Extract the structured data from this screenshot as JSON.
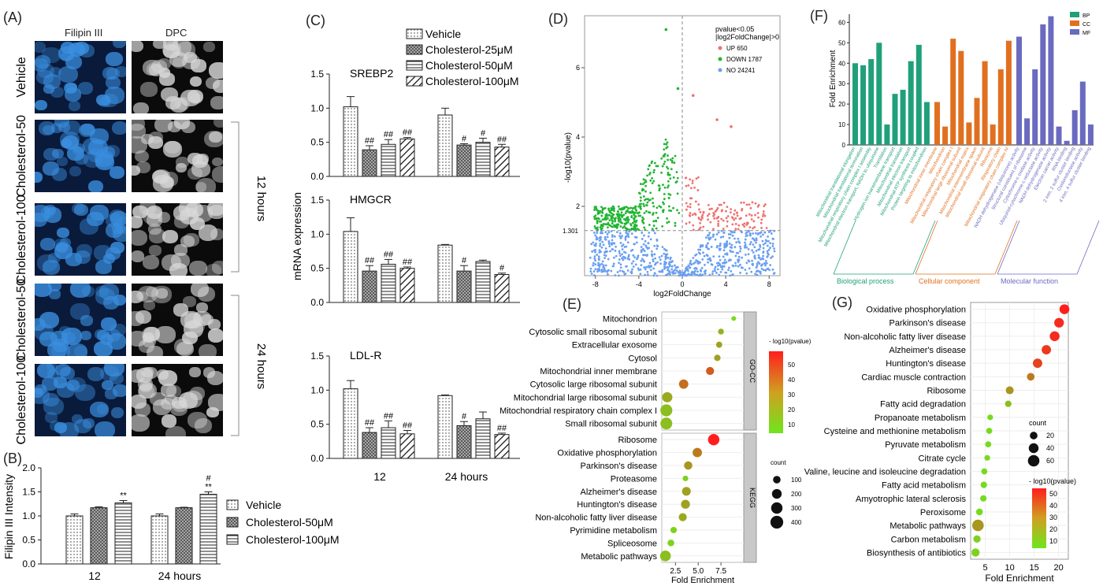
{
  "panel_labels": {
    "a": "(A)",
    "b": "(B)",
    "c": "(C)",
    "d": "(D)",
    "e": "(E)",
    "f": "(F)",
    "g": "(G)"
  },
  "panelA": {
    "columns": [
      "Filipin III",
      "DPC"
    ],
    "rows": [
      "Vehicle",
      "Cholesterol-50",
      "Cholesterol-100",
      "Cholesterol-50",
      "Cholesterol-100"
    ],
    "brackets": [
      "12 hours",
      "24 hours"
    ],
    "colors": {
      "filipin": "#3a8fe0",
      "dpc": "#d8d8d8"
    }
  },
  "chart_data": [
    {
      "id": "B",
      "type": "bar",
      "ylabel": "Filipin III Intensity",
      "categories": [
        "12",
        "24 hours"
      ],
      "yticks": [
        "0.0",
        "0.5",
        "1.0",
        "1.5",
        "2.0"
      ],
      "ylim": [
        0,
        2.0
      ],
      "series": [
        {
          "name": "Vehicle",
          "values": [
            1.0,
            1.0
          ],
          "err": [
            0.04,
            0.04
          ],
          "pattern": "dots"
        },
        {
          "name": "Cholesterol-50μM",
          "values": [
            1.17,
            1.17
          ],
          "err": [
            0.02,
            0.01
          ],
          "pattern": "cross"
        },
        {
          "name": "Cholesterol-100μM",
          "values": [
            1.27,
            1.45
          ],
          "err": [
            0.05,
            0.05
          ],
          "pattern": "hlines"
        }
      ],
      "annotations": [
        {
          "text": "**",
          "cat": 0,
          "series": 2
        },
        {
          "text": "**",
          "cat": 1,
          "series": 2
        },
        {
          "text": "#",
          "cat": 1,
          "series": 2
        }
      ]
    },
    {
      "id": "C",
      "type": "bar",
      "ylabel": "mRNA expression",
      "categories": [
        "12",
        "24 hours"
      ],
      "legend": [
        "Vehicle",
        "Cholesterol-25μM",
        "Cholesterol-50μM",
        "Cholesterol-100μM"
      ],
      "yticks": [
        "0.0",
        "0.5",
        "1.0",
        "1.5"
      ],
      "ylim": [
        0,
        1.5
      ],
      "subplots": [
        {
          "title": "SREBP2",
          "values": [
            [
              1.02,
              0.39,
              0.47,
              0.55
            ],
            [
              0.9,
              0.46,
              0.5,
              0.43
            ]
          ],
          "err": [
            [
              0.15,
              0.06,
              0.07,
              0.02
            ],
            [
              0.1,
              0.02,
              0.06,
              0.04
            ]
          ],
          "ann": [
            [
              "",
              "##",
              "##",
              "##"
            ],
            [
              "",
              "#",
              "#",
              "##"
            ]
          ]
        },
        {
          "title": "HMGCR",
          "values": [
            [
              1.04,
              0.46,
              0.56,
              0.5
            ],
            [
              0.84,
              0.46,
              0.6,
              0.41
            ]
          ],
          "err": [
            [
              0.2,
              0.08,
              0.07,
              0.02
            ],
            [
              0.01,
              0.08,
              0.02,
              0.02
            ]
          ],
          "ann": [
            [
              "",
              "##",
              "##",
              "##"
            ],
            [
              "",
              "#",
              "",
              "#"
            ]
          ]
        },
        {
          "title": "LDL-R",
          "values": [
            [
              1.02,
              0.38,
              0.45,
              0.36
            ],
            [
              0.92,
              0.48,
              0.58,
              0.35
            ]
          ],
          "err": [
            [
              0.12,
              0.07,
              0.1,
              0.05
            ],
            [
              0.01,
              0.06,
              0.1,
              0.02
            ]
          ],
          "ann": [
            [
              "",
              "##",
              "##",
              "##"
            ],
            [
              "",
              "#",
              "",
              "##"
            ]
          ]
        }
      ]
    },
    {
      "id": "D",
      "type": "scatter",
      "xlabel": "log2FoldChange",
      "ylabel": "-log10(pvalue)",
      "xticks": [
        "-8",
        "-4",
        "0",
        "4",
        "8"
      ],
      "xlim": [
        -9,
        9
      ],
      "yticks": [
        "2",
        "4",
        "6"
      ],
      "ylim": [
        0,
        7.5
      ],
      "threshold_label": "1.301",
      "legend_title": [
        "pvalue<0.05",
        "|log2FoldChange|>0"
      ],
      "series": [
        {
          "name": "UP 650",
          "color": "#f07070"
        },
        {
          "name": "DOWN 1787",
          "color": "#22b533"
        },
        {
          "name": "NO 24241",
          "color": "#6a9ff0"
        }
      ],
      "outliers": [
        {
          "x": -1.5,
          "y": 7.1,
          "s": 1
        },
        {
          "x": -0.4,
          "y": 5.4,
          "s": 1
        },
        {
          "x": 1.0,
          "y": 5.2,
          "s": 0
        },
        {
          "x": 3.2,
          "y": 4.5,
          "s": 0
        },
        {
          "x": 4.5,
          "y": 4.3,
          "s": 0
        }
      ]
    },
    {
      "id": "E",
      "type": "scatter",
      "xlabel": "Fold Enrichment",
      "xticks": [
        "2.5",
        "5.0",
        "7.5"
      ],
      "xlim": [
        1,
        10
      ],
      "colorbar_title": "- log10(pvalue)",
      "colorbar_ticks": [
        "10",
        "20",
        "30",
        "40",
        "50"
      ],
      "size_title": "count",
      "size_ticks": [
        "100",
        "200",
        "300",
        "400"
      ],
      "facets": [
        {
          "name": "GO-CC",
          "terms": [
            "Mitochondrion",
            "Cytosolic small ribosomal subunit",
            "Extracellular exosome",
            "Cytosol",
            "Mitochondrial inner membrane",
            "Cytosolic large ribosomal subunit",
            "Mitochondrial large ribosomal subunit",
            "Mitochondrial respiratory chain complex I",
            "Small ribosomal subunit"
          ],
          "x": [
            8.9,
            7.5,
            7.3,
            7.1,
            6.3,
            3.4,
            1.6,
            1.5,
            1.5
          ],
          "count": [
            20,
            45,
            55,
            60,
            120,
            180,
            230,
            340,
            330
          ],
          "p": [
            8,
            18,
            22,
            22,
            40,
            35,
            20,
            15,
            15
          ]
        },
        {
          "name": "KEGG",
          "terms": [
            "Ribosome",
            "Oxidative phosphorylation",
            "Parkinson's disease",
            "Proteasome",
            "Alzheimer's disease",
            "Huntington's disease",
            "Non-alcoholic fatty liver disease",
            "Pyrimidine metabolism",
            "Spliceosome",
            "Metabolic pathways"
          ],
          "x": [
            6.7,
            4.9,
            3.9,
            3.6,
            3.7,
            3.6,
            3.3,
            2.3,
            2.0,
            1.4
          ],
          "count": [
            300,
            180,
            130,
            40,
            150,
            160,
            120,
            60,
            70,
            260
          ],
          "p": [
            55,
            32,
            25,
            10,
            22,
            22,
            20,
            10,
            10,
            15
          ]
        }
      ]
    },
    {
      "id": "F",
      "type": "bar",
      "ylabel": "Fold Enrichment",
      "yticks": [
        "0",
        "10",
        "20",
        "30",
        "40",
        "50",
        "60"
      ],
      "ylim": [
        0,
        64
      ],
      "legend": [
        {
          "name": "BP",
          "color": "#20a07a"
        },
        {
          "name": "CC",
          "color": "#e07020"
        },
        {
          "name": "MF",
          "color": "#6a6ac0"
        }
      ],
      "groups": [
        {
          "name": "Biological process",
          "color": "#20a07a",
          "labels": [
            "Mitochondrial translational elongation",
            "Mitochondrial translational termination",
            "Mitochondrial respiratory chain complex I assembly",
            "Mitochondrial electron transport, NADH to ubiquinone",
            "Translation",
            "Hydrogen ion transmembrane transport",
            "Mitochondrial translation",
            "Mitochondrial electron transport",
            "Mitochondrial ATP synthesis coupled",
            "Protein targeting to mitochondrion"
          ],
          "values": [
            40,
            39,
            42,
            50,
            10,
            25,
            27,
            41,
            49,
            21
          ]
        },
        {
          "name": "Cellular component",
          "color": "#e07020",
          "labels": [
            "Mitochondrial inner membrane",
            "Mitochondrion",
            "Mitochondrial respiratory chain complex I",
            "Mitochondrial large ribosomal subunit",
            "Mitochondrial matrix",
            "Mitochondrial intermembrane space",
            "Mitochondrial small ribosomal subunit",
            "Ribosome",
            "Respiratory chain",
            "Mitochondrial respiratory chain complex IV"
          ],
          "values": [
            21,
            9,
            52,
            46,
            11,
            23,
            41,
            10,
            37,
            51
          ]
        },
        {
          "name": "Molecular function",
          "color": "#6a6ac0",
          "labels": [
            "NADH dehydrogenase (ubiquinone) activity",
            "Structural constituent of ribosome",
            "Cytochrome-c oxidase activity",
            "Ubiquinol-cytochrome-c reductase activity",
            "NADH dehydrogenase activity",
            "Electron carrier activity",
            "RNA binding",
            "2 iron, 2 sulfur cluster binding",
            "Oxidoreductase activity",
            "4 iron, 4 sulfur cluster binding"
          ],
          "values": [
            53,
            13,
            37,
            59,
            63,
            9,
            2,
            17,
            31,
            10
          ]
        }
      ]
    },
    {
      "id": "G",
      "type": "scatter",
      "xlabel": "Fold Enrichment",
      "xticks": [
        "5",
        "10",
        "15",
        "20"
      ],
      "xlim": [
        2,
        22
      ],
      "size_title": "count",
      "size_ticks": [
        "20",
        "40",
        "60"
      ],
      "colorbar_title": "- log10(pvalue)",
      "colorbar_ticks": [
        "10",
        "20",
        "30",
        "40",
        "50"
      ],
      "terms": [
        "Oxidative phosphorylation",
        "Parkinson's disease",
        "Non-alcoholic fatty liver disease",
        "Alzheimer's disease",
        "Huntington's disease",
        "Cardiac muscle contraction",
        "Ribosome",
        "Fatty acid degradation",
        "Propanoate metabolism",
        "Cysteine and methionine metabolism",
        "Pyruvate metabolism",
        "Citrate cycle",
        "Valine, leucine and isoleucine degradation",
        "Fatty acid metabolism",
        "Amyotrophic lateral sclerosis",
        "Peroxisome",
        "Metabolic pathways",
        "Carbon metabolism",
        "Biosynthesis of antibiotics"
      ],
      "x": [
        21.2,
        20.1,
        19.2,
        17.5,
        15.7,
        14.3,
        10.0,
        9.7,
        6.0,
        5.8,
        5.6,
        5.4,
        4.8,
        4.7,
        4.6,
        3.8,
        3.5,
        3.3,
        3.0
      ],
      "count": [
        40,
        38,
        40,
        35,
        35,
        20,
        22,
        12,
        8,
        10,
        10,
        8,
        10,
        12,
        12,
        14,
        60,
        18,
        24
      ],
      "p": [
        55,
        52,
        52,
        48,
        46,
        32,
        25,
        15,
        8,
        8,
        8,
        8,
        8,
        8,
        8,
        8,
        25,
        10,
        10
      ]
    }
  ]
}
